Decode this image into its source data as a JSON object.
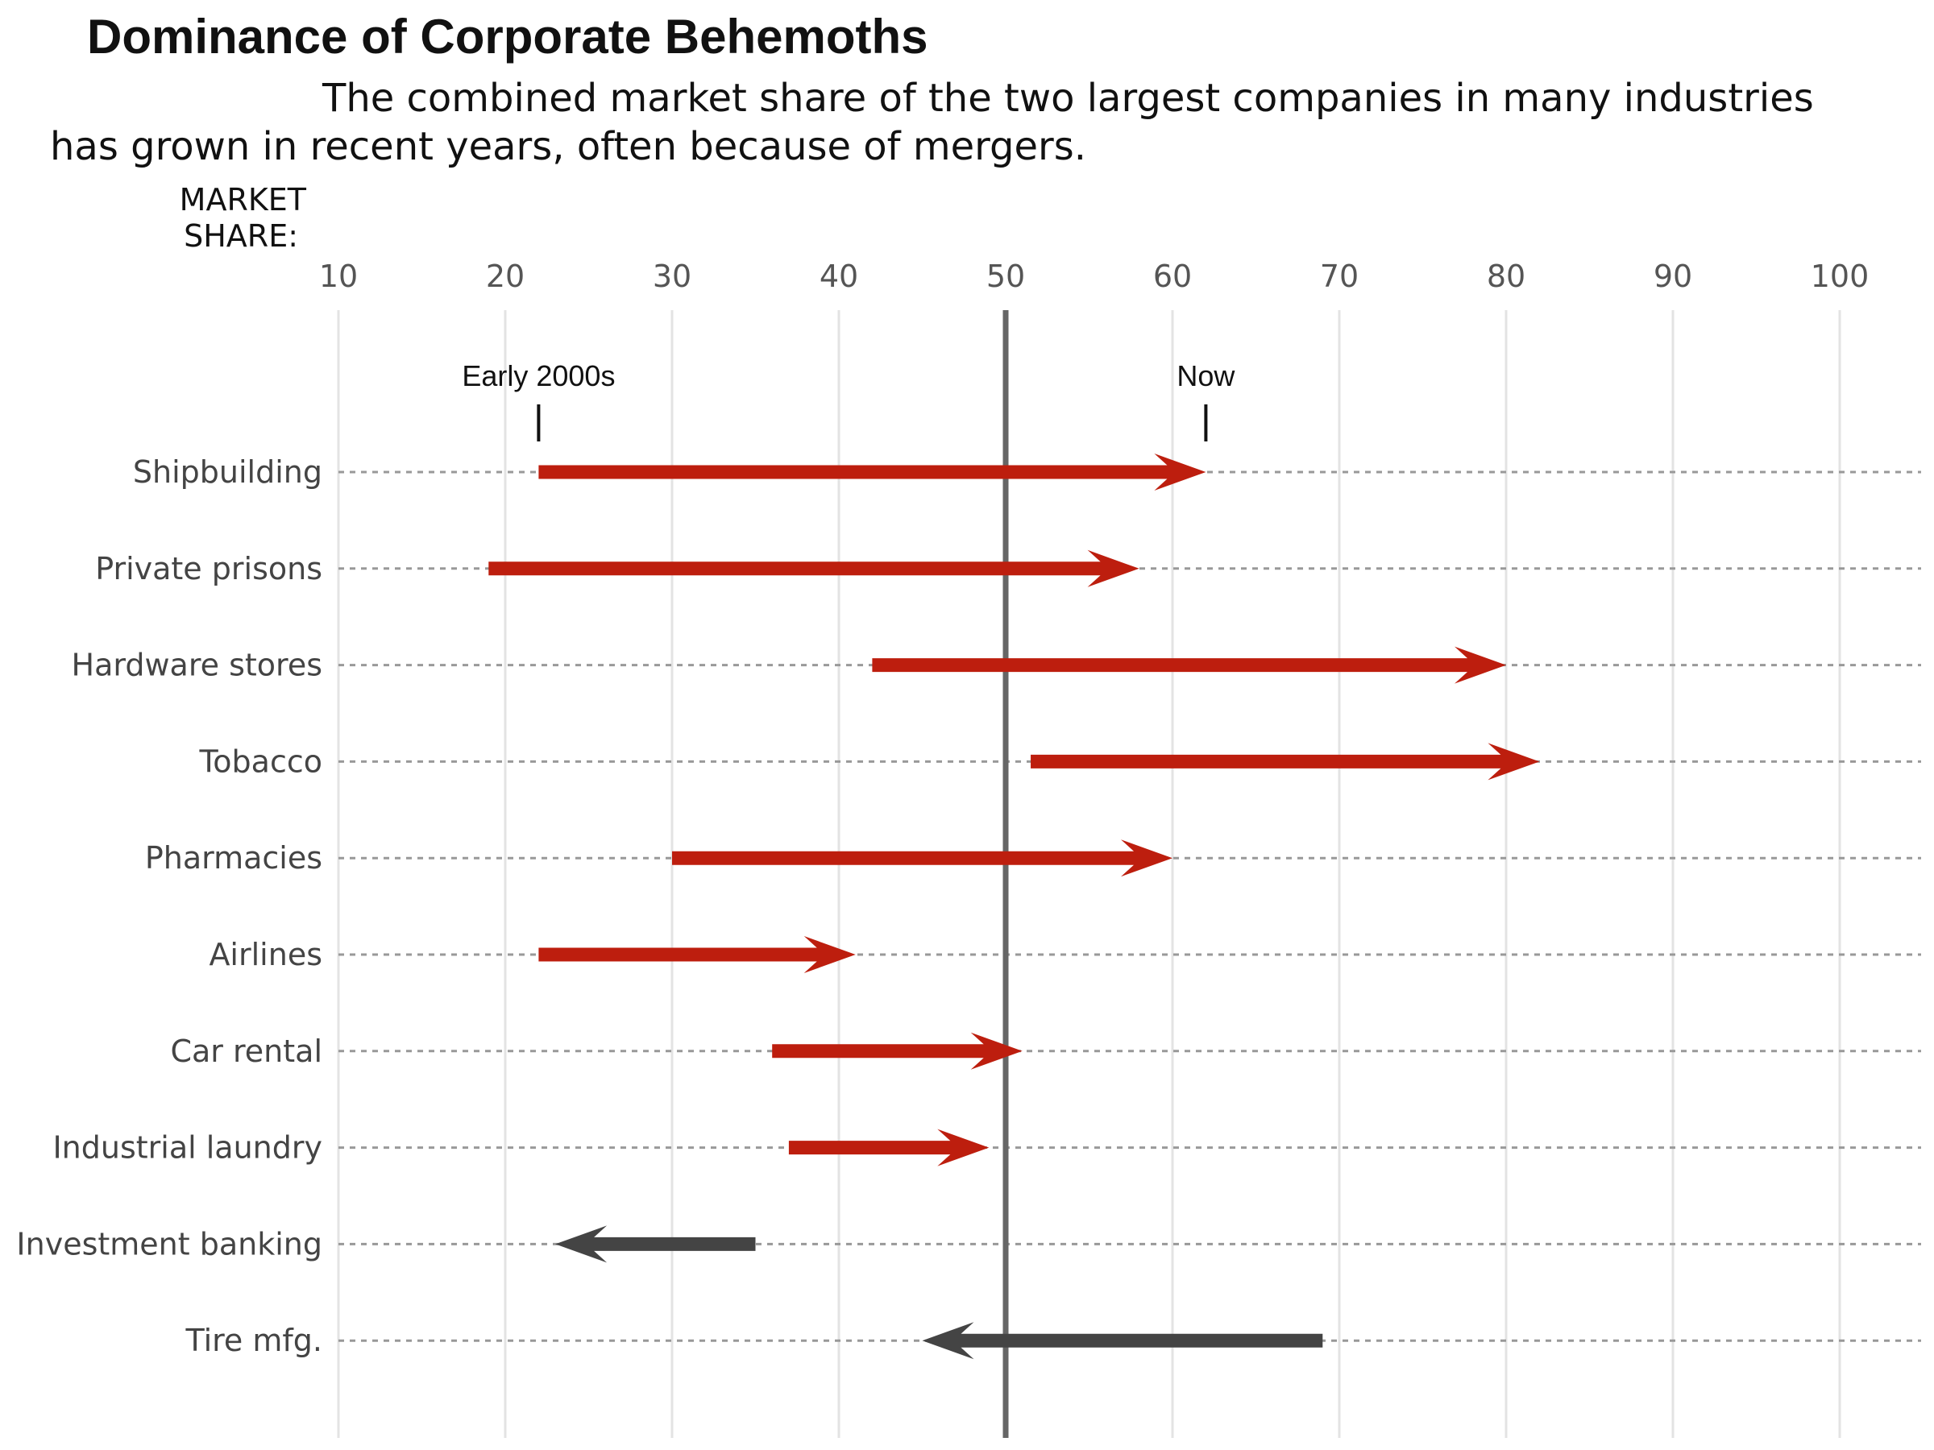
{
  "chart_data": {
    "type": "arrow-range",
    "title": "Dominance of Corporate Behemoths",
    "subtitle_lines": [
      "The combined market share of the two largest companies in many industries",
      "has grown in recent years, often because of mergers."
    ],
    "axis_title_lines": [
      "MARKET",
      "SHARE:"
    ],
    "xlim": [
      10,
      100
    ],
    "xticks": [
      10,
      20,
      30,
      40,
      50,
      60,
      70,
      80,
      90,
      100
    ],
    "reference_line": 50,
    "annotations": {
      "start_label": "Early 2000s",
      "start_value": 22,
      "end_label": "Now",
      "end_value": 62
    },
    "categories": [
      "Shipbuilding",
      "Private prisons",
      "Hardware stores",
      "Tobacco",
      "Pharmacies",
      "Airlines",
      "Car rental",
      "Industrial laundry",
      "Investment banking",
      "Tire mfg."
    ],
    "early_2000s": [
      22,
      19,
      42,
      51.5,
      30,
      22,
      36,
      37,
      35,
      69
    ],
    "now": [
      62,
      58,
      80,
      82,
      60,
      41,
      51,
      49,
      23,
      45
    ],
    "colors": {
      "increase": "#bd1e0e",
      "decrease": "#444444",
      "gridline": "#e3e3e3",
      "reference": "#666666",
      "row_line": "#999999"
    }
  }
}
